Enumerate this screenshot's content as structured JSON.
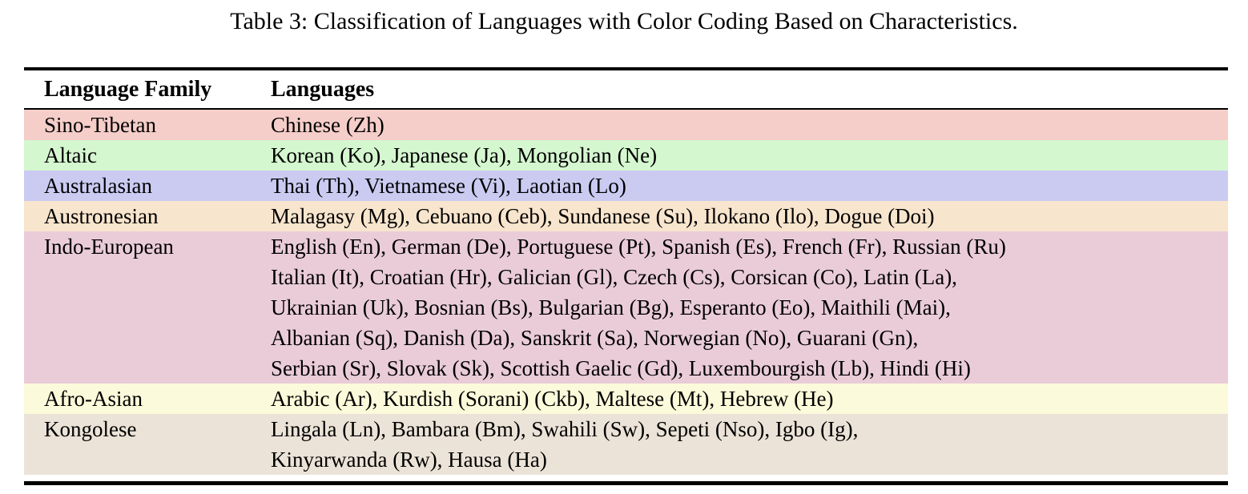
{
  "page": {
    "background": "#ffffff",
    "text_color": "#000000",
    "rule_color": "#000000"
  },
  "caption": "Table 3: Classification of Languages with Color Coding Based on Characteristics.",
  "table": {
    "headers": {
      "family": "Language Family",
      "languages": "Languages"
    },
    "rows": [
      {
        "family": "Sino-Tibetan",
        "color": "#f5cdc9",
        "lines": [
          "Chinese (Zh)"
        ]
      },
      {
        "family": "Altaic",
        "color": "#d5f7d0",
        "lines": [
          "Korean (Ko), Japanese (Ja), Mongolian (Ne)"
        ]
      },
      {
        "family": "Australasian",
        "color": "#cbcbf2",
        "lines": [
          "Thai (Th), Vietnamese (Vi), Laotian (Lo)"
        ]
      },
      {
        "family": "Austronesian",
        "color": "#f8e5cd",
        "lines": [
          "Malagasy (Mg), Cebuano (Ceb), Sundanese (Su), Ilokano (Ilo), Dogue (Doi)"
        ]
      },
      {
        "family": "Indo-European",
        "color": "#eaccd9",
        "lines": [
          "English (En), German (De), Portuguese (Pt), Spanish (Es), French (Fr), Russian (Ru)",
          "Italian (It), Croatian (Hr), Galician (Gl), Czech (Cs), Corsican (Co), Latin (La),",
          "Ukrainian (Uk), Bosnian (Bs), Bulgarian (Bg), Esperanto (Eo), Maithili (Mai),",
          "Albanian (Sq), Danish (Da), Sanskrit (Sa), Norwegian (No), Guarani (Gn),",
          "Serbian (Sr), Slovak (Sk), Scottish Gaelic (Gd), Luxembourgish (Lb), Hindi (Hi)"
        ]
      },
      {
        "family": "Afro-Asian",
        "color": "#fbfada",
        "lines": [
          "Arabic (Ar), Kurdish (Sorani) (Ckb), Maltese (Mt), Hebrew (He)"
        ]
      },
      {
        "family": "Kongolese",
        "color": "#ece3d8",
        "lines": [
          "Lingala (Ln), Bambara (Bm), Swahili (Sw), Sepeti (Nso), Igbo (Ig),",
          "Kinyarwanda (Rw), Hausa (Ha)"
        ]
      }
    ]
  }
}
